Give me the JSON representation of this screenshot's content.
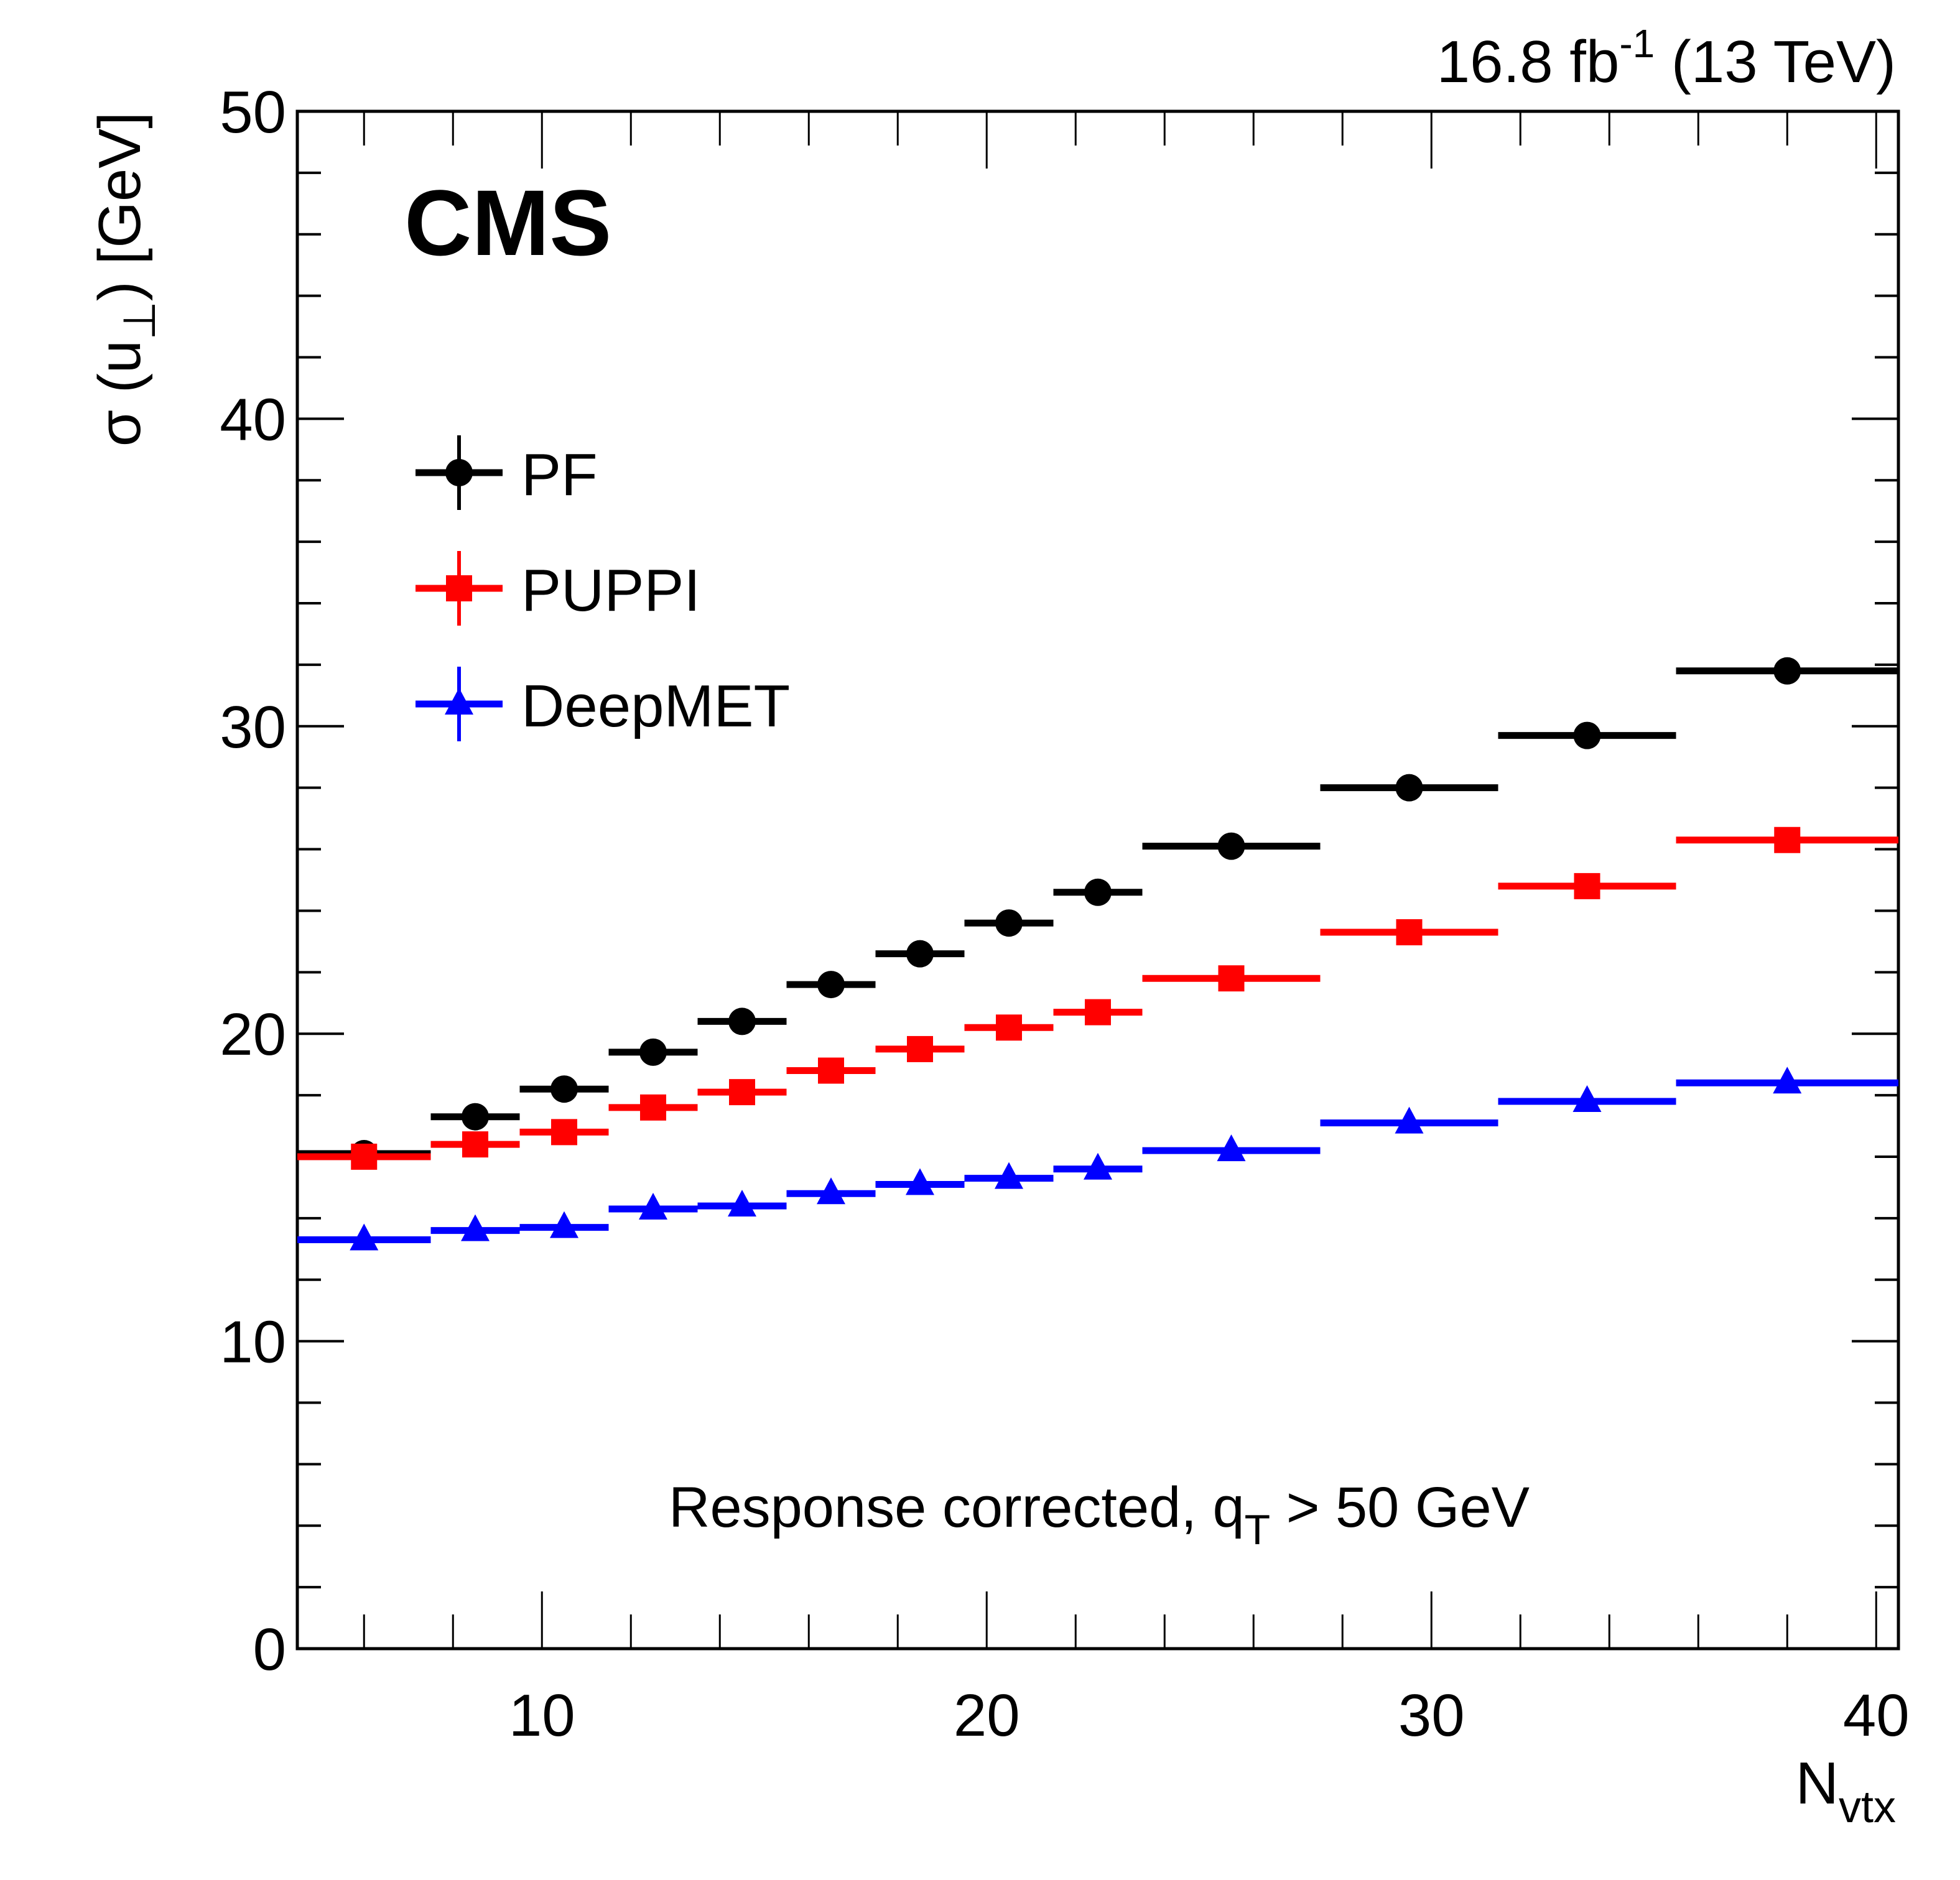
{
  "chart_data": {
    "type": "scatter",
    "title": "",
    "header_left": "CMS",
    "header_right": {
      "lumi": "16.8 fb",
      "lumi_sup": "-1",
      "energy": " (13 TeV)"
    },
    "xlabel": {
      "main": "N",
      "sub": "vtx"
    },
    "ylabel": {
      "pre": "σ (u",
      "sub": "⊥",
      "post": ") [GeV]"
    },
    "xlim": [
      4.5,
      40.5
    ],
    "ylim": [
      0,
      50
    ],
    "xticks": [
      10,
      20,
      30,
      40
    ],
    "yticks": [
      0,
      10,
      20,
      30,
      40,
      50
    ],
    "grid": false,
    "legend_position": "top-left",
    "annotation": {
      "pre": "Response corrected, q",
      "sub": "T",
      "post": " > 50 GeV"
    },
    "bins": [
      [
        4.5,
        7.5
      ],
      [
        7.5,
        9.5
      ],
      [
        9.5,
        11.5
      ],
      [
        11.5,
        13.5
      ],
      [
        13.5,
        15.5
      ],
      [
        15.5,
        17.5
      ],
      [
        17.5,
        19.5
      ],
      [
        19.5,
        21.5
      ],
      [
        21.5,
        23.5
      ],
      [
        23.5,
        27.5
      ],
      [
        27.5,
        31.5
      ],
      [
        31.5,
        35.5
      ],
      [
        35.5,
        40.5
      ]
    ],
    "x": [
      6,
      8.5,
      10.5,
      12.5,
      14.5,
      16.5,
      18.5,
      20.5,
      22.5,
      25.5,
      29.5,
      33.5,
      38
    ],
    "series": [
      {
        "name": "PF",
        "color": "#000000",
        "marker": "circle",
        "values": [
          16.1,
          17.3,
          18.2,
          19.4,
          20.4,
          21.6,
          22.6,
          23.6,
          24.6,
          26.1,
          28.0,
          29.7,
          31.8
        ]
      },
      {
        "name": "PUPPI",
        "color": "#ff0000",
        "marker": "square",
        "values": [
          16.0,
          16.4,
          16.8,
          17.6,
          18.1,
          18.8,
          19.5,
          20.2,
          20.7,
          21.8,
          23.3,
          24.8,
          26.3
        ]
      },
      {
        "name": "DeepMET",
        "color": "#0000ff",
        "marker": "triangle",
        "values": [
          13.3,
          13.6,
          13.7,
          14.3,
          14.4,
          14.8,
          15.1,
          15.3,
          15.6,
          16.2,
          17.1,
          17.8,
          18.4
        ]
      }
    ]
  }
}
